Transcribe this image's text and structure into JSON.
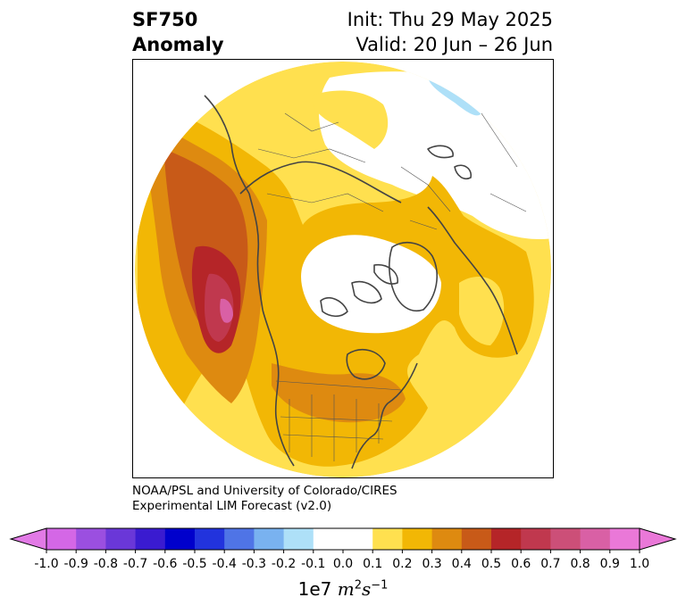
{
  "header": {
    "variable": "SF750",
    "kind": "Anomaly",
    "init": "Init: Thu 29 May 2025",
    "valid": "Valid: 20 Jun – 26 Jun"
  },
  "credit": {
    "line1": "NOAA/PSL and University of Colorado/CIRES",
    "line2": "Experimental LIM Forecast (v2.0)"
  },
  "colorbar": {
    "ticks": [
      "-1.0",
      "-0.9",
      "-0.8",
      "-0.7",
      "-0.6",
      "-0.5",
      "-0.4",
      "-0.3",
      "-0.2",
      "-0.1",
      "0.0",
      "0.1",
      "0.2",
      "0.3",
      "0.4",
      "0.5",
      "0.6",
      "0.7",
      "0.8",
      "0.9",
      "1.0"
    ],
    "colors": [
      "#d467e6",
      "#9b4fe0",
      "#6a37d8",
      "#3a1bd0",
      "#0000cc",
      "#2233dd",
      "#4f74e6",
      "#79b2f0",
      "#aee0f8",
      "#ffffff",
      "#ffffff",
      "#ffe04f",
      "#f2b705",
      "#de8a10",
      "#c85a18",
      "#b52528",
      "#c0384e",
      "#cc4f78",
      "#d960a5",
      "#ea78d8"
    ],
    "under_color": "#e27ae6",
    "over_color": "#ea78d8",
    "unit_prefix": "1e7 ",
    "unit_m": "m",
    "unit_m_exp": "2",
    "unit_s": "s",
    "unit_s_exp": "−1"
  },
  "map": {
    "projection": "north-polar-stereographic",
    "legend_colors": {
      "white": "#ffffff",
      "yellow": "#ffe04f",
      "gold": "#f2b705",
      "orange": "#de8a10",
      "dark_orange": "#c85a18",
      "red": "#b52528",
      "crimson": "#c0384e",
      "pink": "#d960a5",
      "light_blue": "#aee0f8",
      "coastline": "#444444"
    }
  }
}
